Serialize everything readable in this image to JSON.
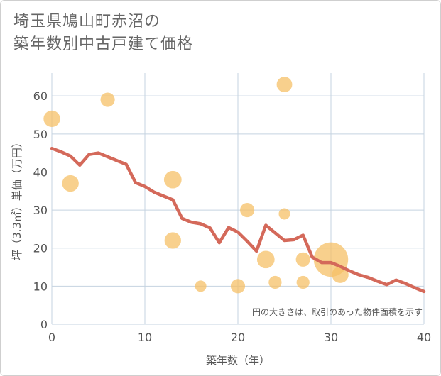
{
  "title_lines": [
    "埼玉県鳩山町赤沼の",
    "築年数別中古戸建て価格"
  ],
  "chart_data": {
    "type": "scatter",
    "xlabel": "築年数（年）",
    "ylabel": "坪（3.3㎡）単価（万円）",
    "xlim": [
      0,
      40
    ],
    "ylim": [
      0,
      66
    ],
    "xticks": [
      0,
      10,
      20,
      30,
      40
    ],
    "yticks": [
      0,
      10,
      20,
      30,
      40,
      50,
      60
    ],
    "grid": true,
    "note": "円の大きさは、取引のあった物件面積を示す",
    "colors": {
      "bubble": "#f5c067",
      "line": "#d4695a",
      "grid": "#c5d3e0"
    },
    "points": [
      {
        "x": 0,
        "y": 54,
        "size": 3
      },
      {
        "x": 2,
        "y": 37,
        "size": 3
      },
      {
        "x": 6,
        "y": 59,
        "size": 2
      },
      {
        "x": 13,
        "y": 38,
        "size": 3.5
      },
      {
        "x": 13,
        "y": 22,
        "size": 3
      },
      {
        "x": 16,
        "y": 10,
        "size": 1
      },
      {
        "x": 20,
        "y": 10,
        "size": 2
      },
      {
        "x": 21,
        "y": 30,
        "size": 2
      },
      {
        "x": 23,
        "y": 17,
        "size": 3.5
      },
      {
        "x": 24,
        "y": 11,
        "size": 1.5
      },
      {
        "x": 25,
        "y": 63,
        "size": 2.5
      },
      {
        "x": 25,
        "y": 29,
        "size": 1
      },
      {
        "x": 27,
        "y": 17,
        "size": 2
      },
      {
        "x": 27,
        "y": 11,
        "size": 1.5
      },
      {
        "x": 30,
        "y": 17,
        "size": 18
      },
      {
        "x": 31,
        "y": 13,
        "size": 3
      }
    ],
    "series": [
      {
        "type": "line",
        "x": [
          0,
          1,
          2,
          3,
          4,
          5,
          6,
          7,
          8,
          9,
          10,
          11,
          12,
          13,
          14,
          15,
          16,
          17,
          18,
          19,
          20,
          21,
          22,
          23,
          24,
          25,
          26,
          27,
          28,
          29,
          30,
          31,
          32,
          33,
          34,
          35,
          36,
          37,
          38,
          39,
          40
        ],
        "values": [
          46.2,
          45.3,
          44.2,
          41.8,
          44.6,
          45.0,
          44.0,
          43.0,
          42.0,
          37.2,
          36.2,
          34.7,
          33.7,
          32.7,
          27.8,
          26.8,
          26.4,
          25.3,
          21.4,
          25.4,
          24.2,
          21.8,
          19.2,
          26.0,
          24.0,
          22.0,
          22.2,
          23.4,
          17.6,
          16.2,
          16.2,
          15.2,
          14.0,
          13.0,
          12.3,
          11.3,
          10.4,
          11.6,
          10.7,
          9.6,
          8.6
        ]
      }
    ]
  }
}
